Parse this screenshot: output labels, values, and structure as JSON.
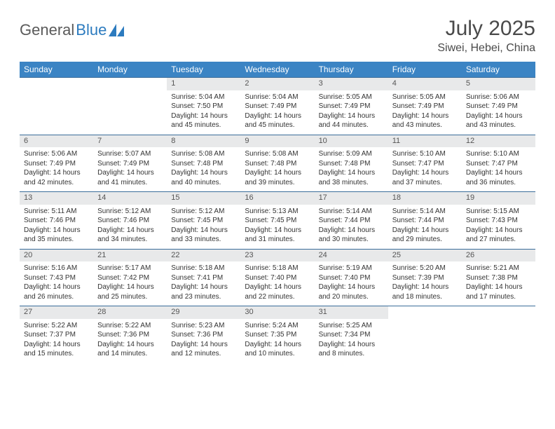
{
  "logo": {
    "part1": "General",
    "part2": "Blue"
  },
  "title": "July 2025",
  "location": "Siwei, Hebei, China",
  "colors": {
    "header_bg": "#3b84c4",
    "header_text": "#ffffff",
    "daynum_bg": "#e8e9ea",
    "rule": "#3b6d9a",
    "logo_gray": "#5a5a5a",
    "logo_blue": "#2c7bbf",
    "text": "#333333"
  },
  "weekdays": [
    "Sunday",
    "Monday",
    "Tuesday",
    "Wednesday",
    "Thursday",
    "Friday",
    "Saturday"
  ],
  "weeks": [
    {
      "nums": [
        "",
        "",
        "1",
        "2",
        "3",
        "4",
        "5"
      ],
      "cells": [
        "",
        "",
        "Sunrise: 5:04 AM\nSunset: 7:50 PM\nDaylight: 14 hours and 45 minutes.",
        "Sunrise: 5:04 AM\nSunset: 7:49 PM\nDaylight: 14 hours and 45 minutes.",
        "Sunrise: 5:05 AM\nSunset: 7:49 PM\nDaylight: 14 hours and 44 minutes.",
        "Sunrise: 5:05 AM\nSunset: 7:49 PM\nDaylight: 14 hours and 43 minutes.",
        "Sunrise: 5:06 AM\nSunset: 7:49 PM\nDaylight: 14 hours and 43 minutes."
      ]
    },
    {
      "nums": [
        "6",
        "7",
        "8",
        "9",
        "10",
        "11",
        "12"
      ],
      "cells": [
        "Sunrise: 5:06 AM\nSunset: 7:49 PM\nDaylight: 14 hours and 42 minutes.",
        "Sunrise: 5:07 AM\nSunset: 7:49 PM\nDaylight: 14 hours and 41 minutes.",
        "Sunrise: 5:08 AM\nSunset: 7:48 PM\nDaylight: 14 hours and 40 minutes.",
        "Sunrise: 5:08 AM\nSunset: 7:48 PM\nDaylight: 14 hours and 39 minutes.",
        "Sunrise: 5:09 AM\nSunset: 7:48 PM\nDaylight: 14 hours and 38 minutes.",
        "Sunrise: 5:10 AM\nSunset: 7:47 PM\nDaylight: 14 hours and 37 minutes.",
        "Sunrise: 5:10 AM\nSunset: 7:47 PM\nDaylight: 14 hours and 36 minutes."
      ]
    },
    {
      "nums": [
        "13",
        "14",
        "15",
        "16",
        "17",
        "18",
        "19"
      ],
      "cells": [
        "Sunrise: 5:11 AM\nSunset: 7:46 PM\nDaylight: 14 hours and 35 minutes.",
        "Sunrise: 5:12 AM\nSunset: 7:46 PM\nDaylight: 14 hours and 34 minutes.",
        "Sunrise: 5:12 AM\nSunset: 7:45 PM\nDaylight: 14 hours and 33 minutes.",
        "Sunrise: 5:13 AM\nSunset: 7:45 PM\nDaylight: 14 hours and 31 minutes.",
        "Sunrise: 5:14 AM\nSunset: 7:44 PM\nDaylight: 14 hours and 30 minutes.",
        "Sunrise: 5:14 AM\nSunset: 7:44 PM\nDaylight: 14 hours and 29 minutes.",
        "Sunrise: 5:15 AM\nSunset: 7:43 PM\nDaylight: 14 hours and 27 minutes."
      ]
    },
    {
      "nums": [
        "20",
        "21",
        "22",
        "23",
        "24",
        "25",
        "26"
      ],
      "cells": [
        "Sunrise: 5:16 AM\nSunset: 7:43 PM\nDaylight: 14 hours and 26 minutes.",
        "Sunrise: 5:17 AM\nSunset: 7:42 PM\nDaylight: 14 hours and 25 minutes.",
        "Sunrise: 5:18 AM\nSunset: 7:41 PM\nDaylight: 14 hours and 23 minutes.",
        "Sunrise: 5:18 AM\nSunset: 7:40 PM\nDaylight: 14 hours and 22 minutes.",
        "Sunrise: 5:19 AM\nSunset: 7:40 PM\nDaylight: 14 hours and 20 minutes.",
        "Sunrise: 5:20 AM\nSunset: 7:39 PM\nDaylight: 14 hours and 18 minutes.",
        "Sunrise: 5:21 AM\nSunset: 7:38 PM\nDaylight: 14 hours and 17 minutes."
      ]
    },
    {
      "nums": [
        "27",
        "28",
        "29",
        "30",
        "31",
        "",
        ""
      ],
      "cells": [
        "Sunrise: 5:22 AM\nSunset: 7:37 PM\nDaylight: 14 hours and 15 minutes.",
        "Sunrise: 5:22 AM\nSunset: 7:36 PM\nDaylight: 14 hours and 14 minutes.",
        "Sunrise: 5:23 AM\nSunset: 7:36 PM\nDaylight: 14 hours and 12 minutes.",
        "Sunrise: 5:24 AM\nSunset: 7:35 PM\nDaylight: 14 hours and 10 minutes.",
        "Sunrise: 5:25 AM\nSunset: 7:34 PM\nDaylight: 14 hours and 8 minutes.",
        "",
        ""
      ]
    }
  ]
}
